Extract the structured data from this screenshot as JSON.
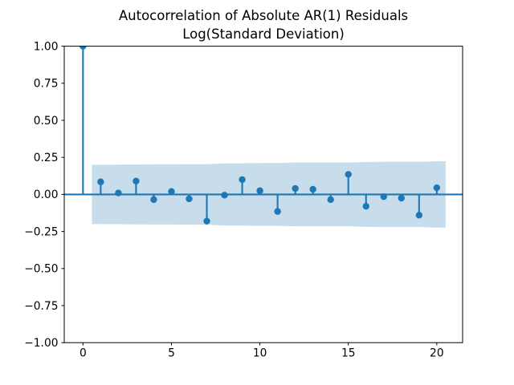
{
  "chart_data": {
    "type": "stem",
    "title_lines": [
      "Autocorrelation of Absolute AR(1) Residuals",
      "Log(Standard Deviation)"
    ],
    "xlabel": "",
    "ylabel": "",
    "grid": false,
    "legend": "none",
    "xlim": [
      -1.06,
      21.46
    ],
    "ylim": [
      -1.0,
      1.0
    ],
    "x_ticks": {
      "values": [
        0,
        5,
        10,
        15,
        20
      ],
      "labels": [
        "0",
        "5",
        "10",
        "15",
        "20"
      ]
    },
    "y_ticks": {
      "values": [
        1.0,
        0.75,
        0.5,
        0.25,
        0.0,
        -0.25,
        -0.5,
        -0.75,
        -1.0
      ],
      "labels": [
        "1.00",
        "0.75",
        "0.50",
        "0.25",
        "0.00",
        "−0.25",
        "−0.50",
        "−0.75",
        "−1.00"
      ]
    },
    "lags": [
      0,
      1,
      2,
      3,
      4,
      5,
      6,
      7,
      8,
      9,
      10,
      11,
      12,
      13,
      14,
      15,
      16,
      17,
      18,
      19,
      20
    ],
    "acf": [
      1.0,
      0.085,
      0.01,
      0.09,
      -0.035,
      0.02,
      -0.03,
      -0.18,
      -0.005,
      0.1,
      0.025,
      -0.115,
      0.04,
      0.035,
      -0.035,
      0.135,
      -0.08,
      -0.015,
      -0.025,
      -0.14,
      0.045
    ],
    "confidence_band": {
      "x": [
        0.5,
        1,
        2,
        3,
        4,
        5,
        6,
        7,
        8,
        9,
        10,
        11,
        12,
        13,
        14,
        15,
        16,
        17,
        18,
        19,
        20,
        20.5
      ],
      "upper": [
        0.2,
        0.2,
        0.201,
        0.202,
        0.203,
        0.203,
        0.204,
        0.204,
        0.21,
        0.21,
        0.212,
        0.212,
        0.215,
        0.215,
        0.215,
        0.215,
        0.219,
        0.22,
        0.22,
        0.22,
        0.224,
        0.224
      ],
      "lower": [
        -0.2,
        -0.2,
        -0.201,
        -0.202,
        -0.203,
        -0.203,
        -0.204,
        -0.204,
        -0.21,
        -0.21,
        -0.212,
        -0.212,
        -0.215,
        -0.215,
        -0.215,
        -0.215,
        -0.219,
        -0.22,
        -0.22,
        -0.22,
        -0.224,
        -0.224
      ]
    },
    "colors": {
      "series": "#1f77b4",
      "band_fill": "#1f77b4",
      "band_opacity": "0.25",
      "axes": "#000000",
      "background": "#ffffff"
    }
  }
}
